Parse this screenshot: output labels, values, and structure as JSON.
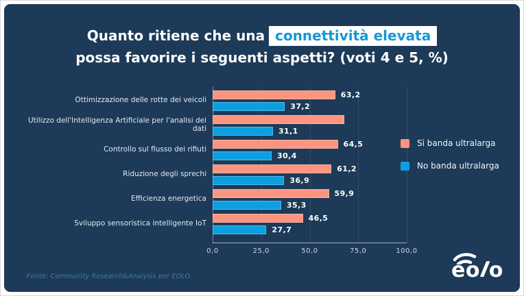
{
  "title": {
    "line1_prefix": "Quanto ritiene che una",
    "highlight": "connettività elevata",
    "line2": "possa favorire i seguenti aspetti? (voti 4 e 5, %)"
  },
  "chart_data": {
    "type": "bar",
    "orientation": "horizontal",
    "categories": [
      "Ottimizzazione delle rotte dei veicoli",
      "Utilizzo dell'Intelligenza Artificiale per l'analisi dei dati",
      "Controllo sul flusso dei rifiuti",
      "Riduzione degli sprechi",
      "Efficienza energetica",
      "Sviluppo sensoristica intelligente IoT"
    ],
    "series": [
      {
        "name": "Sì banda ultralarga",
        "color": "#fb9580",
        "values": [
          63.2,
          68.0,
          64.5,
          61.2,
          59.9,
          46.5
        ],
        "value_labels": [
          "63,2",
          "",
          "64,5",
          "61,2",
          "59,9",
          "46,5"
        ]
      },
      {
        "name": "No banda ultralarga",
        "color": "#0c9fe0",
        "values": [
          37.2,
          31.1,
          30.4,
          36.9,
          35.3,
          27.7
        ],
        "value_labels": [
          "37,2",
          "31,1",
          "30,4",
          "36,9",
          "35,3",
          "27,7"
        ]
      }
    ],
    "xlim": [
      0,
      100
    ],
    "xticks": [
      0,
      25,
      50,
      75,
      100
    ],
    "xtick_labels": [
      "0,0",
      "25,0",
      "50,0",
      "75,0",
      "100,0"
    ],
    "grid": "vertical-faint",
    "legend_position": "right"
  },
  "footer": {
    "source": "Fonte: Community Research&Analysis per EOLO."
  },
  "logo": {
    "name": "EOLO",
    "part1": "eo",
    "part2": "l",
    "part3": "o"
  },
  "colors": {
    "background": "#1d3a58",
    "si_bar": "#fb9580",
    "no_bar": "#0c9fe0",
    "highlight_bg": "#ffffff",
    "highlight_text": "#1597d8"
  }
}
